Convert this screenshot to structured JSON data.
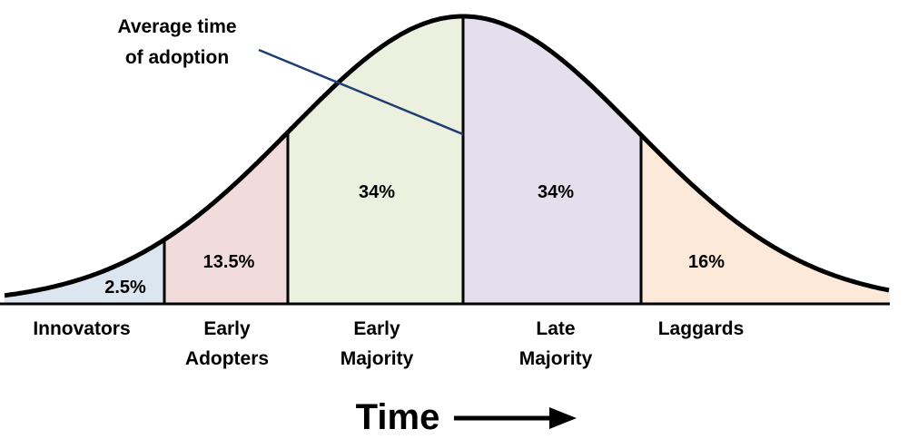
{
  "annotation": {
    "lines": [
      "Average time",
      "of adoption"
    ]
  },
  "axis_label": "Time",
  "segments": [
    {
      "label_lines": [
        "Innovators"
      ],
      "percent": "2.5%"
    },
    {
      "label_lines": [
        "Early",
        "Adopters"
      ],
      "percent": "13.5%"
    },
    {
      "label_lines": [
        "Early",
        "Majority"
      ],
      "percent": "34%"
    },
    {
      "label_lines": [
        "Late",
        "Majority"
      ],
      "percent": "34%"
    },
    {
      "label_lines": [
        "Laggards"
      ],
      "percent": "16%"
    }
  ]
}
